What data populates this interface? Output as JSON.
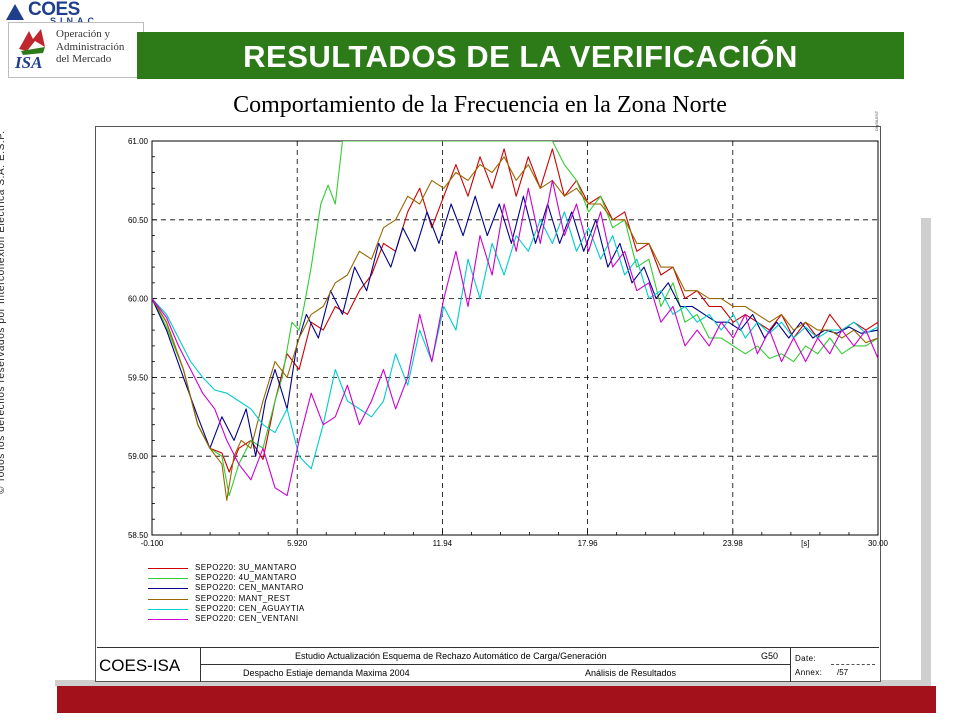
{
  "header": {
    "logo_coes": "COES",
    "logo_coes_sub": "SINAC",
    "logo_isa_word": "ISA",
    "logo_isa_lines": [
      "Operación y",
      "Administración",
      "del Mercado"
    ],
    "banner_title": "RESULTADOS DE  LA VERIFICACIÓN",
    "subtitle": "Comportamiento de la Frecuencia en la Zona Norte"
  },
  "copyright": "© Todos los derechos reservados por Interconexión Eléctrica S.A. E.S.P.",
  "colors": {
    "banner": "#2d7a18",
    "footer_bar": "#a3121a",
    "brand_blue": "#1f3e8c"
  },
  "chart_data": {
    "type": "line",
    "title": "",
    "xlabel": "[s]",
    "ylabel": "",
    "xlim": [
      -0.1,
      30.0
    ],
    "ylim": [
      58.5,
      61.0
    ],
    "x_ticks": [
      "-0.100",
      "5.920",
      "11.94",
      "17.96",
      "23.98",
      "30.00"
    ],
    "y_ticks": [
      "61.00",
      "60.50",
      "60.00",
      "59.50",
      "59.00",
      "58.50"
    ],
    "grid": "dashed at major ticks",
    "legend_position": "bottom-left",
    "series": [
      {
        "name": "SEPO220: 3U_MANTARO",
        "color": "#cc0000",
        "x": [
          -0.1,
          0.5,
          1.2,
          1.8,
          2.3,
          2.8,
          3.1,
          3.5,
          4.0,
          4.5,
          5.0,
          5.5,
          6.0,
          6.5,
          7.0,
          7.5,
          8.0,
          8.5,
          9.0,
          9.5,
          10.0,
          10.5,
          11.0,
          11.5,
          12.0,
          12.5,
          13.0,
          13.5,
          14.0,
          14.5,
          15.0,
          15.5,
          16.0,
          16.5,
          17.0,
          17.5,
          18.0,
          18.5,
          19.0,
          19.5,
          20.0,
          20.5,
          21.0,
          21.5,
          22.0,
          22.5,
          23.0,
          23.5,
          24.0,
          24.5,
          25.0,
          25.5,
          26.0,
          26.5,
          27.0,
          27.5,
          28.0,
          28.5,
          29.0,
          29.5,
          30.0
        ],
        "y": [
          60.0,
          59.85,
          59.55,
          59.2,
          59.05,
          59.02,
          58.9,
          59.05,
          59.1,
          58.98,
          59.35,
          59.65,
          59.55,
          59.85,
          59.8,
          59.95,
          59.9,
          60.05,
          60.15,
          60.35,
          60.3,
          60.55,
          60.7,
          60.45,
          60.65,
          60.85,
          60.65,
          60.9,
          60.7,
          60.95,
          60.65,
          60.9,
          60.7,
          60.95,
          60.65,
          60.75,
          60.6,
          60.65,
          60.5,
          60.55,
          60.3,
          60.35,
          60.15,
          60.2,
          60.0,
          60.05,
          59.95,
          59.95,
          59.85,
          59.9,
          59.85,
          59.8,
          59.9,
          59.75,
          59.85,
          59.75,
          59.9,
          59.8,
          59.85,
          59.8,
          59.85
        ]
      },
      {
        "name": "SEPO220: 4U_MANTARO",
        "color": "#33cc33",
        "x": [
          -0.1,
          0.5,
          1.2,
          1.8,
          2.3,
          2.8,
          3.1,
          3.5,
          4.0,
          4.5,
          5.0,
          5.3,
          5.7,
          6.0,
          6.2,
          6.5,
          6.9,
          7.2,
          7.5,
          7.8,
          16.5,
          17.0,
          17.5,
          18.0,
          18.5,
          19.0,
          19.5,
          20.0,
          20.5,
          21.0,
          21.5,
          22.0,
          22.5,
          23.0,
          23.5,
          24.0,
          24.5,
          25.0,
          25.5,
          26.0,
          26.5,
          27.0,
          27.5,
          28.0,
          28.5,
          29.0,
          29.5,
          30.0
        ],
        "y": [
          60.0,
          59.82,
          59.55,
          59.2,
          59.05,
          59.0,
          58.75,
          58.95,
          59.1,
          59.05,
          59.35,
          59.5,
          59.85,
          59.8,
          59.95,
          60.2,
          60.6,
          60.72,
          60.6,
          61.0,
          61.0,
          60.85,
          60.75,
          60.55,
          60.65,
          60.45,
          60.5,
          60.2,
          60.25,
          59.95,
          60.1,
          59.85,
          59.9,
          59.75,
          59.75,
          59.7,
          59.65,
          59.7,
          59.62,
          59.65,
          59.6,
          59.7,
          59.65,
          59.75,
          59.65,
          59.7,
          59.7,
          59.75
        ]
      },
      {
        "name": "SEPO220: CEN_MANTARO",
        "color": "#000088",
        "x": [
          -0.1,
          0.5,
          1.2,
          1.8,
          2.3,
          2.8,
          3.3,
          3.8,
          4.2,
          4.6,
          5.0,
          5.5,
          5.9,
          6.3,
          6.8,
          7.3,
          7.8,
          8.3,
          8.8,
          9.3,
          9.8,
          10.3,
          10.8,
          11.3,
          11.8,
          12.3,
          12.8,
          13.3,
          13.8,
          14.3,
          14.8,
          15.3,
          15.8,
          16.3,
          16.8,
          17.3,
          17.8,
          18.3,
          18.8,
          19.3,
          19.8,
          20.3,
          20.8,
          21.3,
          21.8,
          22.3,
          22.8,
          23.3,
          23.8,
          24.3,
          24.8,
          25.3,
          25.8,
          26.3,
          26.8,
          27.3,
          27.8,
          28.3,
          28.8,
          29.3,
          30.0
        ],
        "y": [
          60.0,
          59.8,
          59.5,
          59.25,
          59.05,
          59.25,
          59.1,
          59.3,
          59.0,
          59.35,
          59.55,
          59.3,
          59.7,
          59.9,
          59.75,
          60.05,
          59.9,
          60.2,
          60.05,
          60.35,
          60.2,
          60.45,
          60.3,
          60.55,
          60.35,
          60.6,
          60.4,
          60.65,
          60.4,
          60.6,
          60.35,
          60.65,
          60.35,
          60.6,
          60.35,
          60.55,
          60.3,
          60.5,
          60.2,
          60.35,
          60.1,
          60.2,
          60.0,
          60.1,
          59.95,
          59.95,
          59.9,
          59.85,
          59.85,
          59.8,
          59.9,
          59.75,
          59.85,
          59.75,
          59.85,
          59.75,
          59.8,
          59.78,
          59.82,
          59.78,
          59.8
        ]
      },
      {
        "name": "SEPO220: MANT_REST",
        "color": "#996600",
        "x": [
          -0.1,
          0.5,
          1.2,
          1.8,
          2.3,
          2.8,
          3.0,
          3.3,
          3.6,
          4.0,
          4.5,
          5.0,
          5.5,
          6.0,
          6.5,
          7.0,
          7.5,
          8.0,
          8.5,
          9.0,
          9.5,
          10.0,
          10.5,
          11.0,
          11.5,
          12.0,
          12.5,
          13.0,
          13.5,
          14.0,
          14.5,
          15.0,
          15.5,
          16.0,
          16.5,
          17.0,
          17.5,
          18.0,
          18.5,
          19.0,
          19.5,
          20.0,
          20.5,
          21.0,
          21.5,
          22.0,
          22.5,
          23.0,
          23.5,
          24.0,
          24.5,
          25.0,
          25.5,
          26.0,
          26.5,
          27.0,
          27.5,
          28.0,
          28.5,
          29.0,
          29.5,
          30.0
        ],
        "y": [
          60.0,
          59.85,
          59.55,
          59.2,
          59.05,
          58.95,
          58.72,
          59.0,
          59.1,
          59.05,
          59.35,
          59.6,
          59.5,
          59.75,
          59.9,
          59.95,
          60.1,
          60.15,
          60.3,
          60.25,
          60.45,
          60.5,
          60.65,
          60.6,
          60.75,
          60.7,
          60.8,
          60.75,
          60.85,
          60.8,
          60.9,
          60.75,
          60.85,
          60.7,
          60.75,
          60.65,
          60.7,
          60.6,
          60.6,
          60.5,
          60.5,
          60.35,
          60.35,
          60.2,
          60.2,
          60.05,
          60.05,
          60.0,
          60.0,
          59.95,
          59.95,
          59.9,
          59.85,
          59.9,
          59.8,
          59.85,
          59.8,
          59.8,
          59.75,
          59.8,
          59.72,
          59.75
        ]
      },
      {
        "name": "SEPO220: CEN_AGUAYTIA",
        "color": "#00cccc",
        "x": [
          -0.1,
          0.5,
          1.0,
          1.5,
          2.0,
          2.5,
          3.0,
          3.5,
          4.0,
          4.5,
          5.0,
          5.5,
          6.0,
          6.5,
          7.0,
          7.5,
          8.0,
          8.5,
          9.0,
          9.5,
          10.0,
          10.5,
          11.0,
          11.5,
          12.0,
          12.5,
          13.0,
          13.5,
          14.0,
          14.5,
          15.0,
          15.5,
          16.0,
          16.5,
          17.0,
          17.5,
          18.0,
          18.5,
          19.0,
          19.5,
          20.0,
          20.5,
          21.0,
          21.5,
          22.0,
          22.5,
          23.0,
          23.5,
          24.0,
          24.5,
          25.0,
          25.5,
          26.0,
          26.5,
          27.0,
          27.5,
          28.0,
          28.5,
          29.0,
          29.5,
          30.0
        ],
        "y": [
          60.0,
          59.9,
          59.75,
          59.6,
          59.5,
          59.42,
          59.4,
          59.35,
          59.3,
          59.2,
          59.15,
          59.3,
          59.0,
          58.92,
          59.2,
          59.55,
          59.35,
          59.3,
          59.25,
          59.35,
          59.65,
          59.45,
          59.8,
          59.6,
          59.95,
          59.8,
          60.25,
          60.0,
          60.35,
          60.15,
          60.4,
          60.3,
          60.5,
          60.35,
          60.55,
          60.3,
          60.45,
          60.25,
          60.4,
          60.15,
          60.25,
          60.0,
          60.05,
          59.9,
          59.95,
          59.85,
          59.9,
          59.8,
          59.9,
          59.75,
          59.85,
          59.78,
          59.85,
          59.75,
          59.82,
          59.75,
          59.8,
          59.8,
          59.85,
          59.78,
          59.82
        ]
      },
      {
        "name": "SEPO220: CEN_VENTANI",
        "color": "#cc00cc",
        "x": [
          -0.1,
          0.5,
          1.0,
          1.5,
          2.0,
          2.5,
          3.0,
          3.5,
          4.0,
          4.5,
          5.0,
          5.5,
          6.0,
          6.5,
          7.0,
          7.5,
          8.0,
          8.5,
          9.0,
          9.5,
          10.0,
          10.5,
          11.0,
          11.5,
          12.0,
          12.5,
          13.0,
          13.5,
          14.0,
          14.5,
          15.0,
          15.5,
          16.0,
          16.5,
          17.0,
          17.5,
          18.0,
          18.5,
          19.0,
          19.5,
          20.0,
          20.5,
          21.0,
          21.5,
          22.0,
          22.5,
          23.0,
          23.5,
          24.0,
          24.5,
          25.0,
          25.5,
          26.0,
          26.5,
          27.0,
          27.5,
          28.0,
          28.5,
          29.0,
          29.5,
          30.0
        ],
        "y": [
          60.0,
          59.88,
          59.7,
          59.55,
          59.4,
          59.3,
          59.1,
          58.95,
          58.85,
          59.05,
          58.8,
          58.75,
          59.1,
          59.4,
          59.2,
          59.25,
          59.45,
          59.2,
          59.35,
          59.55,
          59.3,
          59.5,
          59.9,
          59.6,
          60.0,
          60.3,
          59.95,
          60.4,
          60.15,
          60.6,
          60.3,
          60.7,
          60.35,
          60.75,
          60.4,
          60.6,
          60.3,
          60.55,
          60.2,
          60.3,
          60.05,
          60.1,
          59.85,
          59.95,
          59.7,
          59.8,
          59.7,
          59.85,
          59.75,
          59.9,
          59.65,
          59.8,
          59.6,
          59.75,
          59.6,
          59.75,
          59.65,
          59.8,
          59.7,
          59.8,
          59.62
        ]
      }
    ]
  },
  "title_block": {
    "brand": "COES-ISA",
    "description_line1": "Estudio Actualización Esquema de Rechazo Automático de Carga/Generación",
    "code": "G50",
    "description_line2": "Despacho Estiaje demanda Maxima 2004",
    "description_line3": "Análisis de Resultados",
    "date_label": "Date:",
    "annex_label": "Annex:",
    "annex_value": "/57",
    "corner_tag": "DIgSILENT"
  }
}
